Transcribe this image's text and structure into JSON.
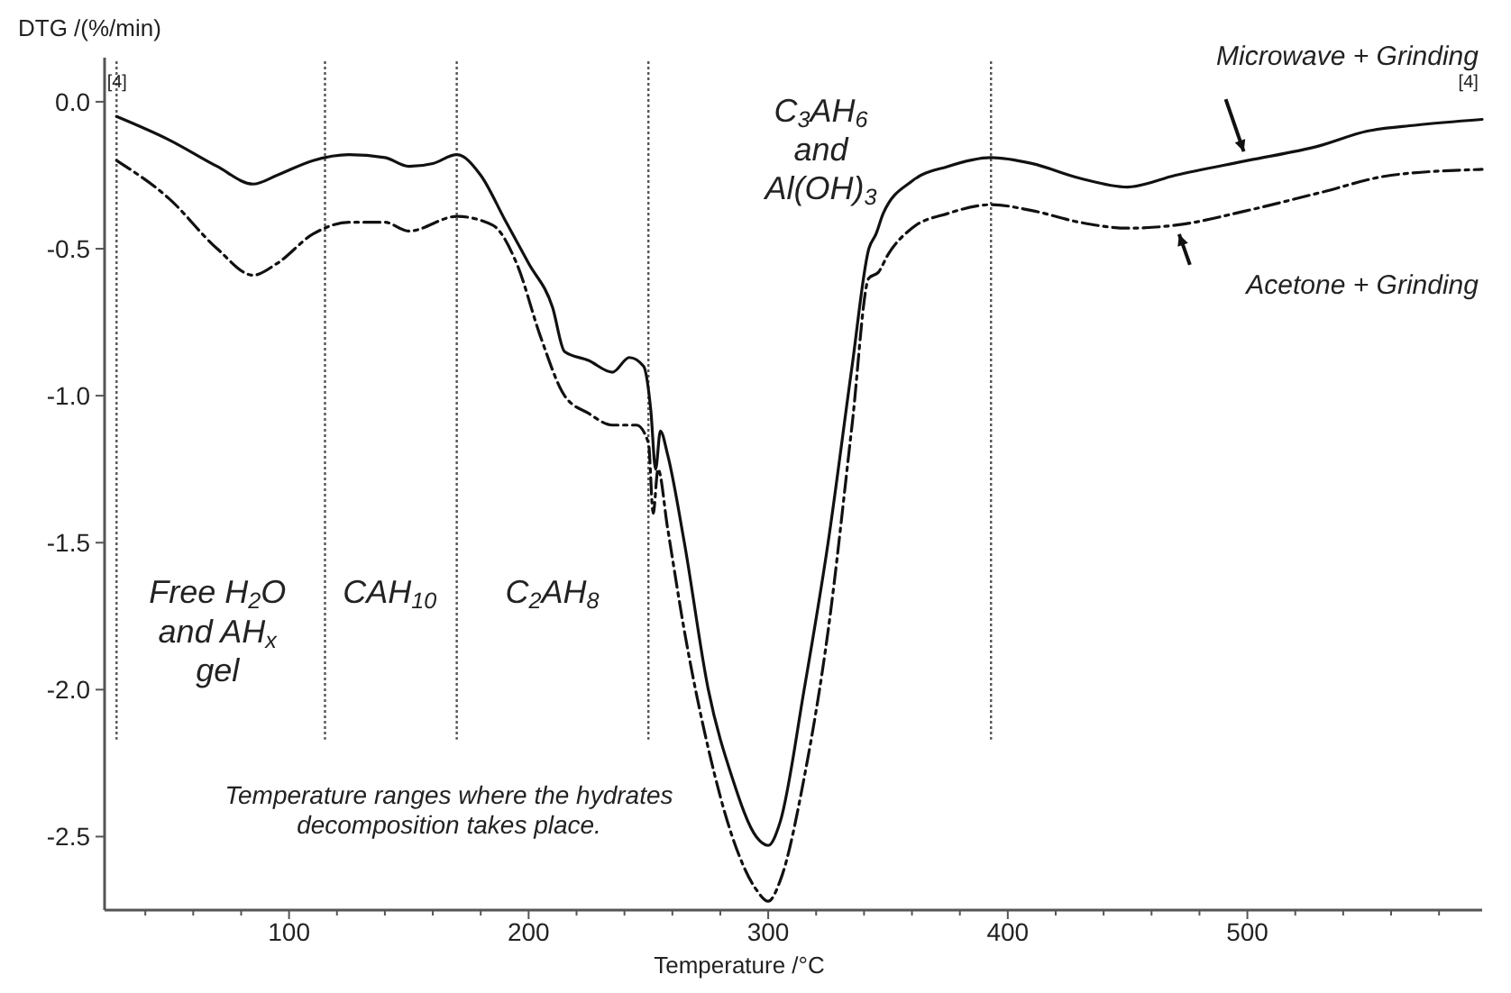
{
  "chart_data": {
    "type": "line",
    "xlabel": "Temperature /°C",
    "ylabel": "DTG /(%/min)",
    "xlim": [
      23,
      598
    ],
    "ylim": [
      -2.75,
      0.15
    ],
    "xticks": [
      {
        "value": 40,
        "label": null
      },
      {
        "value": 60,
        "label": null
      },
      {
        "value": 80,
        "label": null
      },
      100,
      {
        "value": 120,
        "label": null
      },
      {
        "value": 140,
        "label": null
      },
      {
        "value": 160,
        "label": null
      },
      {
        "value": 180,
        "label": null
      },
      200,
      {
        "value": 220,
        "label": null
      },
      {
        "value": 240,
        "label": null
      },
      {
        "value": 260,
        "label": null
      },
      {
        "value": 280,
        "label": null
      },
      300,
      {
        "value": 320,
        "label": null
      },
      {
        "value": 340,
        "label": null
      },
      {
        "value": 360,
        "label": null
      },
      {
        "value": 380,
        "label": null
      },
      400,
      {
        "value": 420,
        "label": null
      },
      {
        "value": 440,
        "label": null
      },
      {
        "value": 460,
        "label": null
      },
      {
        "value": 480,
        "label": null
      },
      500,
      {
        "value": 520,
        "label": null
      },
      {
        "value": 540,
        "label": null
      },
      {
        "value": 560,
        "label": null
      },
      {
        "value": 580,
        "label": null
      }
    ],
    "yticks": [
      {
        "value": 0,
        "label": "0.0"
      },
      -0.5,
      {
        "value": -1,
        "label": "-1.0"
      },
      -1.5,
      {
        "value": -2,
        "label": "-2.0"
      },
      -2.5
    ],
    "x": [
      28,
      50,
      70,
      85,
      95,
      110,
      125,
      140,
      150,
      160,
      170,
      180,
      190,
      200,
      210,
      215,
      225,
      235,
      242,
      248,
      251,
      253,
      255,
      258,
      265,
      275,
      285,
      295,
      300,
      305,
      315,
      325,
      335,
      342,
      345,
      348,
      360,
      375,
      393,
      410,
      430,
      450,
      470,
      500,
      530,
      550,
      570,
      598
    ],
    "series": [
      {
        "name": "Microwave + Grinding",
        "color": "#111111",
        "line_style": "solid",
        "values": [
          -0.05,
          -0.13,
          -0.22,
          -0.28,
          -0.25,
          -0.2,
          -0.18,
          -0.19,
          -0.22,
          -0.21,
          -0.18,
          -0.25,
          -0.4,
          -0.55,
          -0.7,
          -0.85,
          -0.88,
          -0.92,
          -0.87,
          -0.9,
          -1.05,
          -1.25,
          -1.12,
          -1.2,
          -1.5,
          -2.0,
          -2.3,
          -2.5,
          -2.53,
          -2.45,
          -2.0,
          -1.5,
          -0.9,
          -0.5,
          -0.45,
          -0.38,
          -0.27,
          -0.22,
          -0.19,
          -0.21,
          -0.26,
          -0.29,
          -0.25,
          -0.2,
          -0.15,
          -0.1,
          -0.08,
          -0.06
        ]
      },
      {
        "name": "Acetone + Grinding",
        "color": "#111111",
        "line_style": "dashed",
        "x": [
          28,
          50,
          70,
          85,
          95,
          110,
          125,
          140,
          150,
          170,
          185,
          195,
          205,
          215,
          225,
          235,
          245,
          250,
          252,
          254,
          258,
          265,
          275,
          285,
          295,
          300,
          305,
          315,
          325,
          335,
          342,
          346,
          350,
          360,
          375,
          393,
          410,
          430,
          450,
          470,
          500,
          530,
          560,
          598
        ],
        "values": [
          -0.2,
          -0.33,
          -0.5,
          -0.59,
          -0.55,
          -0.45,
          -0.41,
          -0.41,
          -0.44,
          -0.39,
          -0.42,
          -0.55,
          -0.8,
          -1.0,
          -1.06,
          -1.1,
          -1.1,
          -1.16,
          -1.4,
          -1.25,
          -1.45,
          -1.8,
          -2.2,
          -2.5,
          -2.68,
          -2.72,
          -2.65,
          -2.3,
          -1.8,
          -1.1,
          -0.6,
          -0.58,
          -0.52,
          -0.43,
          -0.38,
          -0.35,
          -0.37,
          -0.41,
          -0.43,
          -0.42,
          -0.37,
          -0.31,
          -0.25,
          -0.23
        ]
      }
    ],
    "ref_lines": [
      {
        "axis": "x",
        "value": 28,
        "line_style": "dotted"
      },
      {
        "axis": "x",
        "value": 115,
        "line_style": "dotted"
      },
      {
        "axis": "x",
        "value": 170,
        "line_style": "dotted"
      },
      {
        "axis": "x",
        "value": 250,
        "line_style": "dotted"
      },
      {
        "axis": "x",
        "value": 393,
        "line_style": "dotted"
      }
    ],
    "annotations": [
      "Free H$_{2}$O\nand AH$_{x}$\ngel",
      "CAH$_{10}$",
      "C$_{2}$AH$_{8}$",
      "C$_{3}$AH$_{6}$\nand\nAl(OH)$_{3}$",
      "[4]",
      "[4]",
      "Temperature ranges where the hydrates\ndecomposition takes place."
    ]
  }
}
